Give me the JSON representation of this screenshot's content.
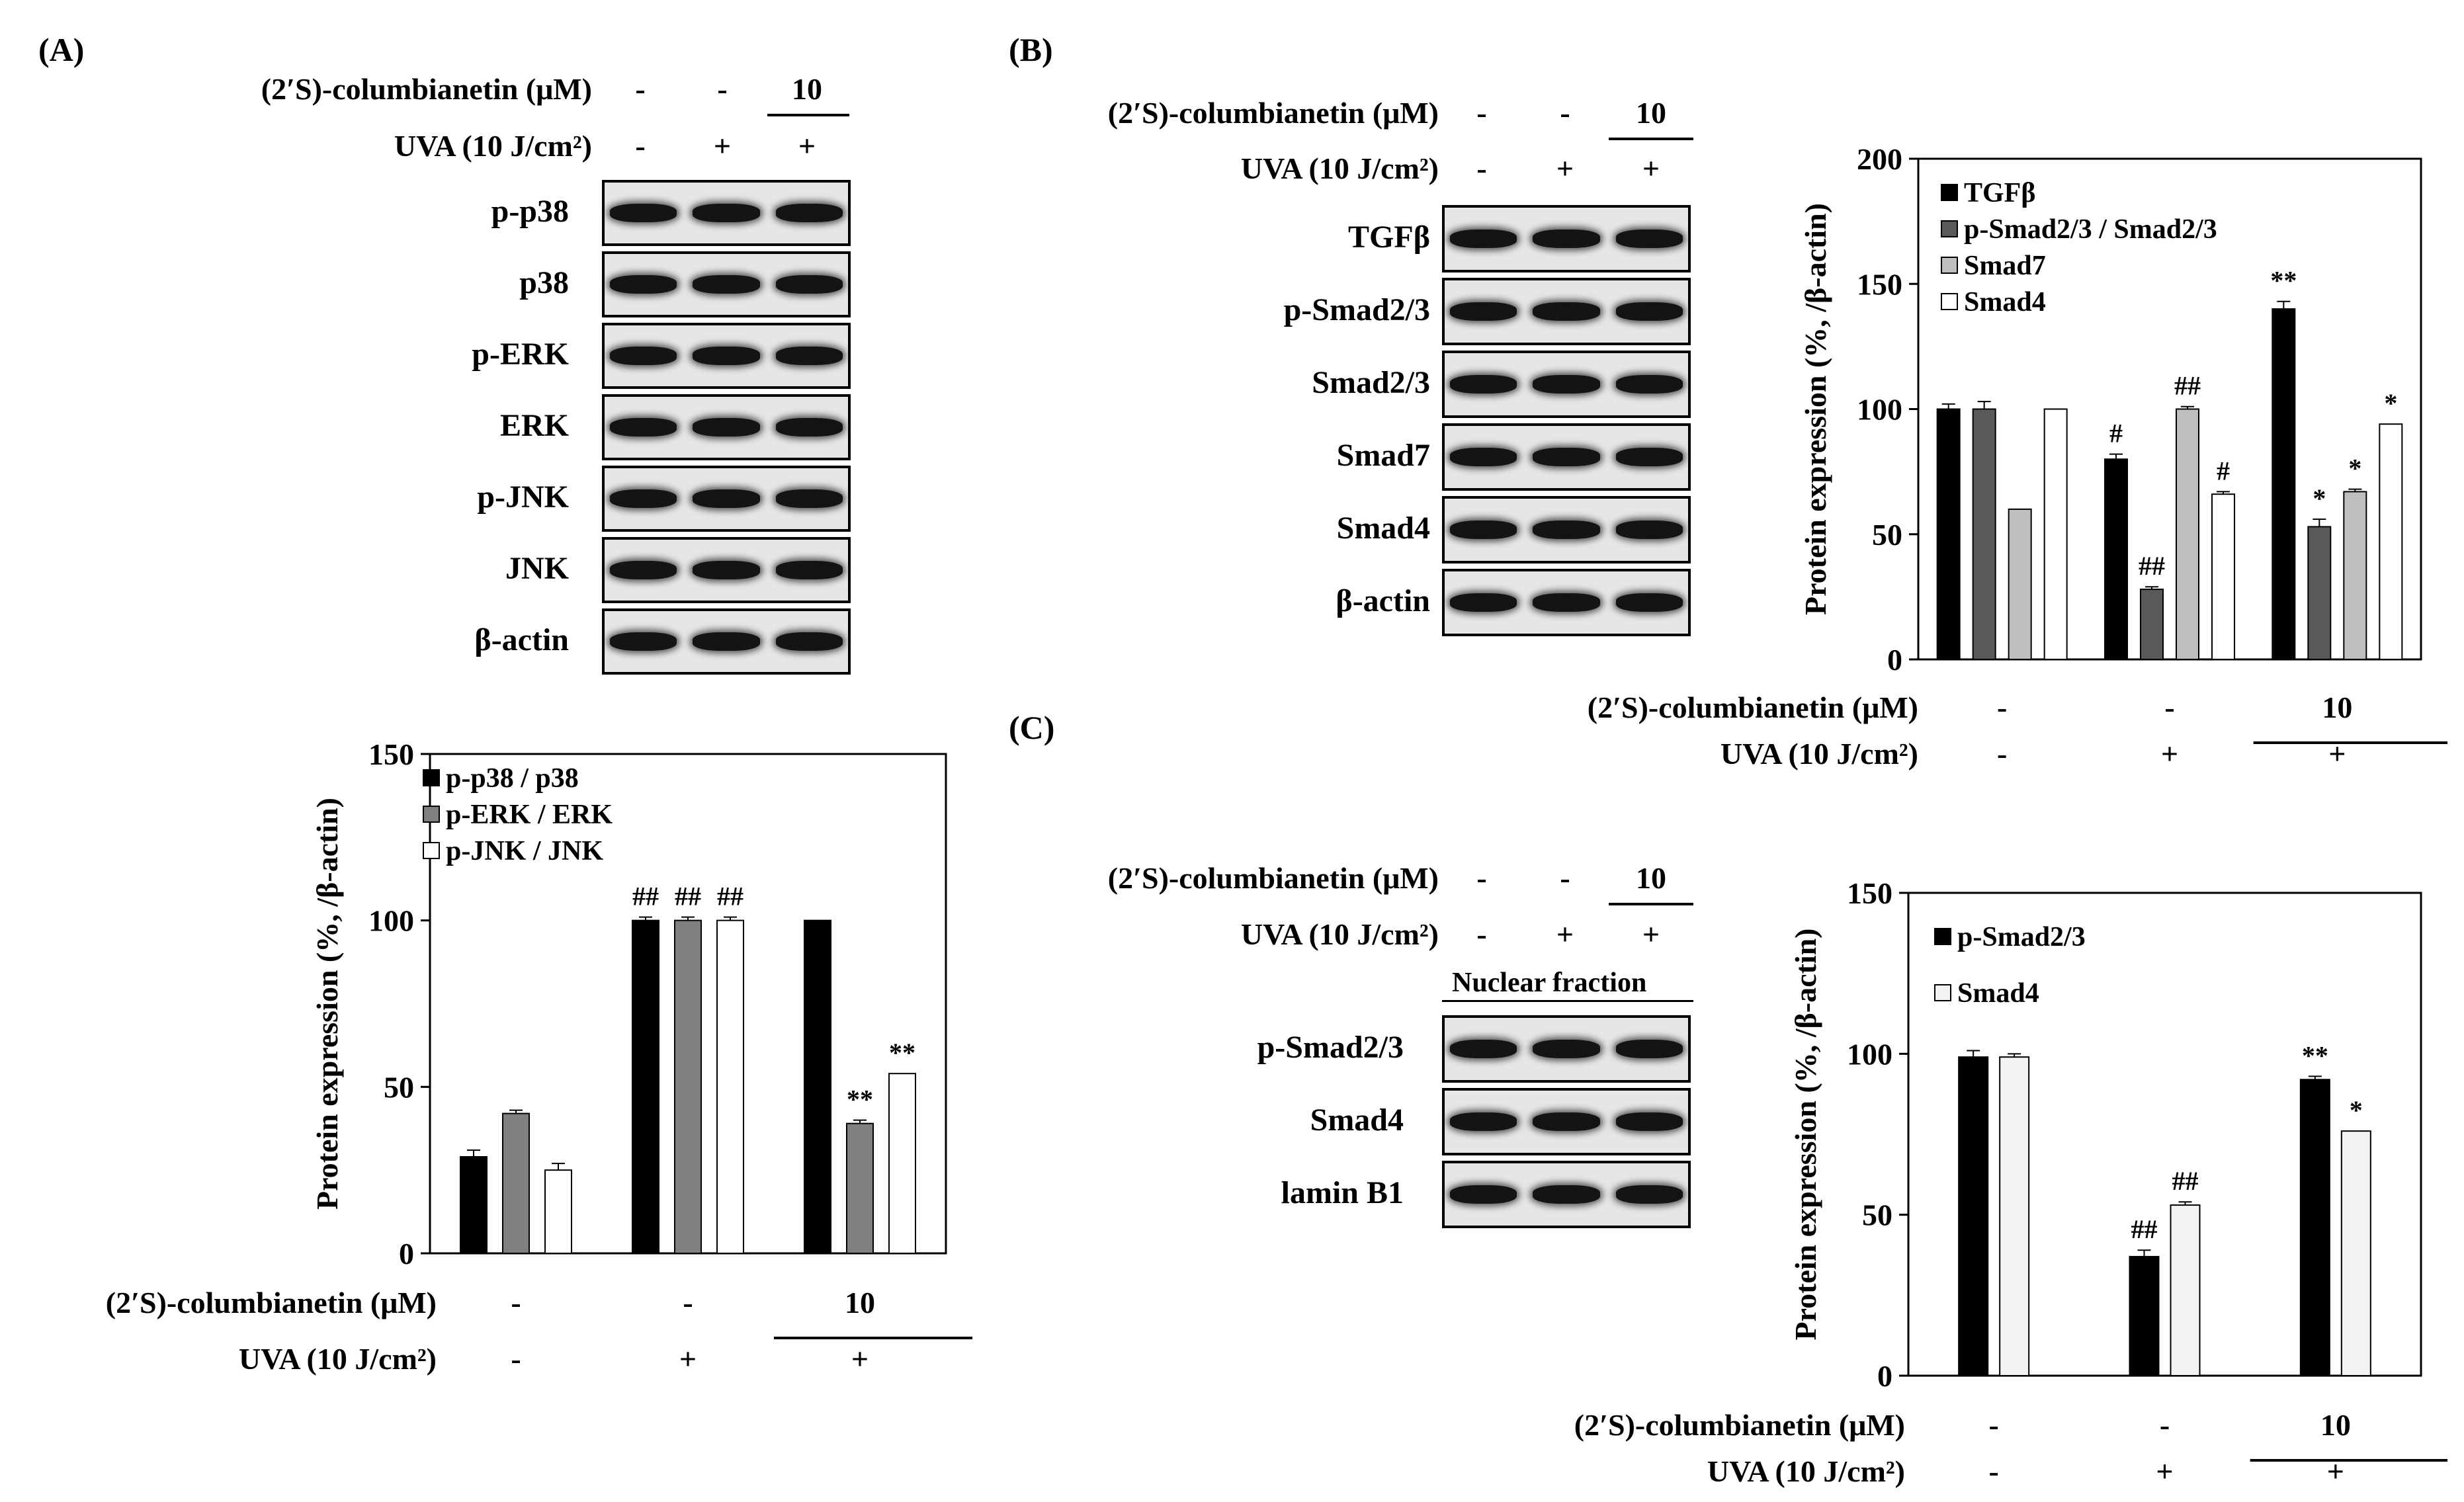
{
  "panels": {
    "A": {
      "label": "(A)",
      "treatment_rows": [
        {
          "name": "(2′S)-columbianetin  (μM)",
          "values": [
            "-",
            "-",
            "10"
          ]
        },
        {
          "name": "UVA (10 J/cm²)",
          "values": [
            "-",
            "+",
            "+"
          ]
        }
      ],
      "blot_rows": [
        "p-p38",
        "p38",
        "p-ERK",
        "ERK",
        "p-JNK",
        "JNK",
        "β-actin"
      ]
    },
    "B": {
      "label": "(B)",
      "treatment_rows": [
        {
          "name": "(2′S)-columbianetin  (μM)",
          "values": [
            "-",
            "-",
            "10"
          ]
        },
        {
          "name": "UVA (10 J/cm²)",
          "values": [
            "-",
            "+",
            "+"
          ]
        }
      ],
      "blot_rows": [
        "TGFβ",
        "p-Smad2/3",
        "Smad2/3",
        "Smad7",
        "Smad4",
        "β-actin"
      ]
    },
    "C": {
      "label": "(C)",
      "treatment_rows": [
        {
          "name": "(2′S)-columbianetin  (μM)",
          "values": [
            "-",
            "-",
            "10"
          ]
        },
        {
          "name": "UVA (10 J/cm²)",
          "values": [
            "-",
            "+",
            "+"
          ]
        }
      ],
      "fraction_label": "Nuclear fraction",
      "blot_rows": [
        "p-Smad2/3",
        "Smad4",
        "lamin B1"
      ]
    }
  },
  "chart_data": [
    {
      "type": "bar",
      "panel": "A",
      "ylabel": "Protein expression (%, /β-actin)",
      "ylim": [
        0,
        150
      ],
      "yticks": [
        0,
        50,
        100,
        150
      ],
      "categories": [
        "1",
        "2",
        "3"
      ],
      "condition_rows": [
        {
          "name": "(2′S)-columbianetin  (μM)",
          "values": [
            "-",
            "-",
            "10"
          ]
        },
        {
          "name": "UVA (10 J/cm²)",
          "values": [
            "-",
            "+",
            "+"
          ]
        }
      ],
      "legend_position": "top-left",
      "series": [
        {
          "name": "p-p38 / p38",
          "color": "#000000",
          "values": [
            29,
            100,
            100
          ],
          "errors": [
            2,
            1,
            0
          ],
          "marks": [
            "",
            "##",
            ""
          ]
        },
        {
          "name": "p-ERK / ERK",
          "color": "#808080",
          "values": [
            42,
            100,
            39
          ],
          "errors": [
            1,
            1,
            1
          ],
          "marks": [
            "",
            "##",
            "**"
          ]
        },
        {
          "name": "p-JNK / JNK",
          "color": "#ffffff",
          "values": [
            25,
            100,
            54
          ],
          "errors": [
            2,
            1,
            0
          ],
          "marks": [
            "",
            "##",
            "**"
          ]
        }
      ]
    },
    {
      "type": "bar",
      "panel": "B",
      "ylabel": "Protein expression (%, /β-actin)",
      "ylim": [
        0,
        200
      ],
      "yticks": [
        0,
        50,
        100,
        150,
        200
      ],
      "categories": [
        "1",
        "2",
        "3"
      ],
      "condition_rows": [
        {
          "name": "(2′S)-columbianetin  (μM)",
          "values": [
            "-",
            "-",
            "10"
          ]
        },
        {
          "name": "UVA (10 J/cm²)",
          "values": [
            "-",
            "+",
            "+"
          ]
        }
      ],
      "legend_position": "top-left",
      "series": [
        {
          "name": "TGFβ",
          "color": "#000000",
          "values": [
            100,
            80,
            140
          ],
          "errors": [
            2,
            2,
            3
          ],
          "marks": [
            "",
            "#",
            "**"
          ]
        },
        {
          "name": "p-Smad2/3 / Smad2/3",
          "color": "#595959",
          "values": [
            100,
            28,
            53
          ],
          "errors": [
            3,
            1,
            3
          ],
          "marks": [
            "",
            "##",
            "*"
          ]
        },
        {
          "name": "Smad7",
          "color": "#bfbfbf",
          "values": [
            60,
            100,
            67
          ],
          "errors": [
            0,
            1,
            1
          ],
          "marks": [
            "",
            "##",
            "*"
          ]
        },
        {
          "name": "Smad4",
          "color": "#ffffff",
          "values": [
            100,
            66,
            94
          ],
          "errors": [
            0,
            1,
            0
          ],
          "marks": [
            "",
            "#",
            "*"
          ]
        }
      ]
    },
    {
      "type": "bar",
      "panel": "C",
      "ylabel": "Protein expression (%, /β-actin)",
      "ylim": [
        0,
        150
      ],
      "yticks": [
        0,
        50,
        100,
        150
      ],
      "categories": [
        "1",
        "2",
        "3"
      ],
      "condition_rows": [
        {
          "name": "(2′S)-columbianetin  (μM)",
          "values": [
            "-",
            "-",
            "10"
          ]
        },
        {
          "name": "UVA (10 J/cm²)",
          "values": [
            "-",
            "+",
            "+"
          ]
        }
      ],
      "legend_position": "top-left",
      "series": [
        {
          "name": "p-Smad2/3",
          "color": "#000000",
          "values": [
            99,
            37,
            92
          ],
          "errors": [
            2,
            2,
            1
          ],
          "marks": [
            "",
            "##",
            "**"
          ]
        },
        {
          "name": "Smad4",
          "color": "#f2f2f2",
          "values": [
            99,
            53,
            76
          ],
          "errors": [
            1,
            1,
            0
          ],
          "marks": [
            "",
            "##",
            "*"
          ]
        }
      ]
    }
  ]
}
